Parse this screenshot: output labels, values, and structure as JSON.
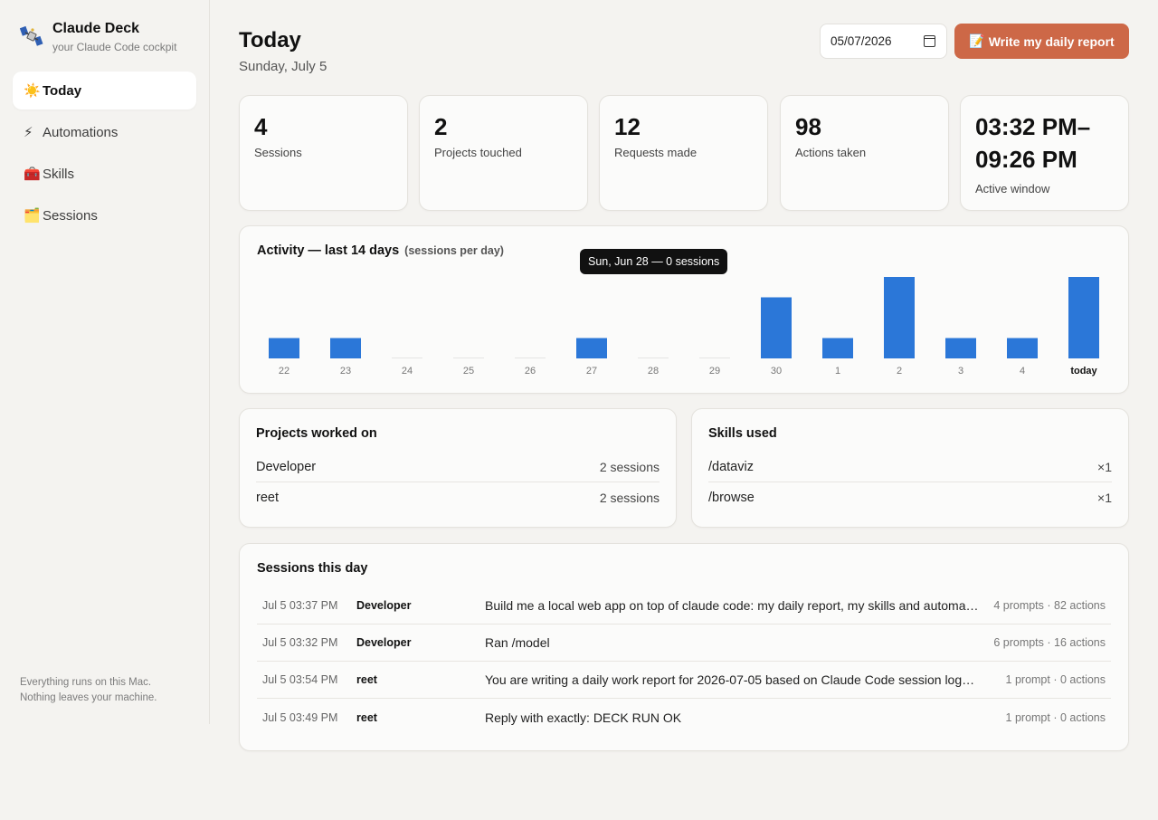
{
  "app": {
    "title": "Claude Deck",
    "subtitle": "your Claude Code cockpit",
    "logo_icon": "satellite-icon"
  },
  "sidebar": {
    "items": [
      {
        "label": "Today",
        "icon": "☀️",
        "icon_name": "sun-icon",
        "active": true
      },
      {
        "label": "Automations",
        "icon": "⚡",
        "icon_name": "lightning-icon",
        "active": false
      },
      {
        "label": "Skills",
        "icon": "🧰",
        "icon_name": "toolbox-icon",
        "active": false
      },
      {
        "label": "Sessions",
        "icon": "🗂️",
        "icon_name": "folder-icon",
        "active": false
      }
    ],
    "footer_line1": "Everything runs on this Mac.",
    "footer_line2": "Nothing leaves your machine."
  },
  "header": {
    "title": "Today",
    "date_label": "Sunday, July 5",
    "date_input_value": "05/07/2026",
    "report_button_icon": "📝",
    "report_button_label": "Write my daily report"
  },
  "stats": [
    {
      "value": "4",
      "label": "Sessions"
    },
    {
      "value": "2",
      "label": "Projects touched"
    },
    {
      "value": "12",
      "label": "Requests made"
    },
    {
      "value": "98",
      "label": "Actions taken"
    },
    {
      "value_line1": "03:32 PM–",
      "value_line2": "09:26 PM",
      "label": "Active window"
    }
  ],
  "activity": {
    "title": "Activity — last 14 days",
    "subtitle": "(sessions per day)",
    "tooltip": "Sun, Jun 28 — 0 sessions"
  },
  "chart_data": {
    "type": "bar",
    "categories": [
      "22",
      "23",
      "24",
      "25",
      "26",
      "27",
      "28",
      "29",
      "30",
      "1",
      "2",
      "3",
      "4",
      "today"
    ],
    "values": [
      1,
      1,
      0,
      0,
      0,
      1,
      0,
      0,
      3,
      1,
      4,
      1,
      1,
      4
    ],
    "title": "Activity — last 14 days",
    "ylabel": "",
    "xlabel": "",
    "ylim": [
      0,
      4
    ],
    "grid": false,
    "bar_color": "#2b77d8"
  },
  "projects": {
    "title": "Projects worked on",
    "rows": [
      {
        "name": "Developer",
        "count": "2 sessions"
      },
      {
        "name": "reet",
        "count": "2 sessions"
      }
    ]
  },
  "skills": {
    "title": "Skills used",
    "rows": [
      {
        "name": "/dataviz",
        "count": "×1"
      },
      {
        "name": "/browse",
        "count": "×1"
      }
    ]
  },
  "sessions": {
    "title": "Sessions this day",
    "rows": [
      {
        "time": "Jul 5 03:37 PM",
        "project": "Developer",
        "prompt": "Build me a local web app on top of claude code: my daily report, my skills and automations",
        "stats": "4 prompts · 82 actions"
      },
      {
        "time": "Jul 5 03:32 PM",
        "project": "Developer",
        "prompt": "Ran /model",
        "stats": "6 prompts · 16 actions"
      },
      {
        "time": "Jul 5 03:54 PM",
        "project": "reet",
        "prompt": "You are writing a daily work report for 2026-07-05 based on Claude Code session logs. ...",
        "stats": "1 prompt · 0 actions"
      },
      {
        "time": "Jul 5 03:49 PM",
        "project": "reet",
        "prompt": "Reply with exactly: DECK RUN OK",
        "stats": "1 prompt · 0 actions"
      }
    ]
  },
  "colors": {
    "accent": "#cd6847",
    "bar": "#2b77d8",
    "background": "#f4f3f0",
    "card": "#fbfbfa"
  }
}
